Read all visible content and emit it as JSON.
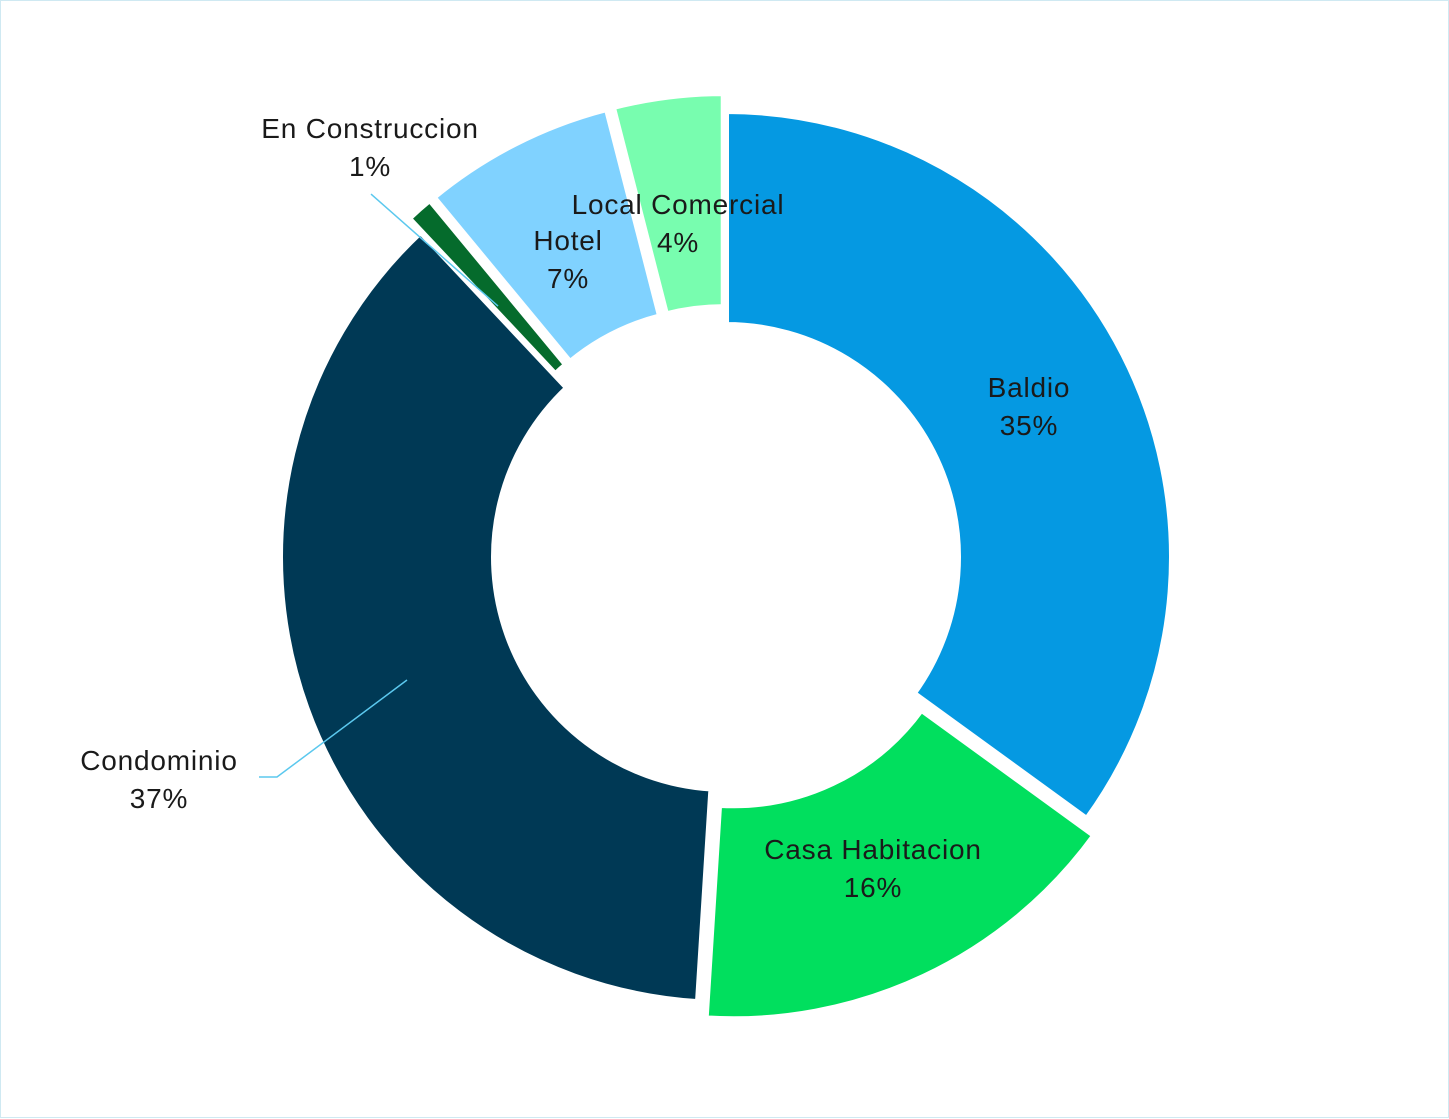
{
  "chart_data": {
    "type": "pie",
    "title": "",
    "donut": true,
    "categories": [
      "Baldio",
      "Casa Habitacion",
      "Condominio",
      "En Construccion",
      "Hotel",
      "Local Comercial"
    ],
    "values": [
      35,
      16,
      37,
      1,
      7,
      4
    ],
    "value_labels": [
      "35%",
      "16%",
      "37%",
      "1%",
      "7%",
      "4%"
    ],
    "colors": [
      "#0599e2",
      "#01df5e",
      "#003955",
      "#056b2c",
      "#80d2ff",
      "#78fdaf"
    ],
    "exploded": [
      false,
      true,
      false,
      true,
      true,
      true
    ],
    "legend": "none",
    "labels_position": "data labels on slices with leader lines for small or outside labels"
  }
}
